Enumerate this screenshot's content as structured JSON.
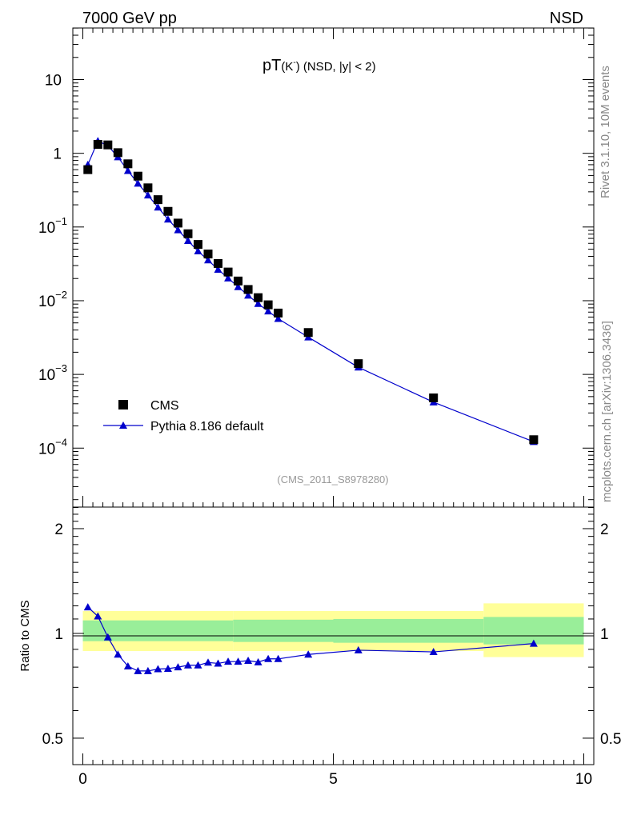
{
  "header": {
    "left": "7000 GeV pp",
    "right": "NSD"
  },
  "side_text": {
    "rivet": "Rivet 3.1.10,  10M events",
    "mcplots": "mcplots.cern.ch [arXiv:1306.3436]"
  },
  "colors": {
    "mc": "#0000cc",
    "data": "#000000",
    "band_outer": "#ffff99",
    "band_inner": "#99ee99",
    "watermark": "#999999"
  },
  "chart_data": {
    "type": "scatter",
    "title_main": "pT",
    "title_particle": "(K",
    "title_superscript": "-",
    "title_particle_close": ")",
    "title_suffix": " (NSD, |y| < 2)",
    "watermark": "(CMS_2011_S8978280)",
    "xlim": [
      -0.2,
      10.2
    ],
    "ylim_log10": [
      -4.8,
      1.7
    ],
    "x_ticks": [
      0,
      5,
      10
    ],
    "x_tick_labels": [
      "0",
      "5",
      "10"
    ],
    "y_ticks": [
      {
        "exp": 1,
        "label": "10",
        "sup": ""
      },
      {
        "exp": 0,
        "label": "1",
        "sup": ""
      },
      {
        "exp": -1,
        "label": "10",
        "sup": "−1"
      },
      {
        "exp": -2,
        "label": "10",
        "sup": "−2"
      },
      {
        "exp": -3,
        "label": "10",
        "sup": "−3"
      },
      {
        "exp": -4,
        "label": "10",
        "sup": "−4"
      }
    ],
    "legend": [
      {
        "name": "CMS",
        "marker": "square"
      },
      {
        "name": "Pythia 8.186 default",
        "marker": "triangle"
      }
    ],
    "x": [
      0.1,
      0.3,
      0.5,
      0.7,
      0.9,
      1.1,
      1.3,
      1.5,
      1.7,
      1.9,
      2.1,
      2.3,
      2.5,
      2.7,
      2.9,
      3.1,
      3.3,
      3.5,
      3.7,
      3.9,
      4.5,
      5.5,
      7.0,
      9.0
    ],
    "series": [
      {
        "name": "CMS",
        "values": [
          0.6,
          1.32,
          1.3,
          1.02,
          0.72,
          0.49,
          0.34,
          0.235,
          0.163,
          0.113,
          0.081,
          0.058,
          0.043,
          0.032,
          0.0245,
          0.0185,
          0.0142,
          0.011,
          0.0088,
          0.0068,
          0.0037,
          0.0014,
          0.00048,
          0.00013
        ]
      },
      {
        "name": "Pythia 8.186 default",
        "values": [
          0.7,
          1.47,
          1.27,
          0.89,
          0.58,
          0.39,
          0.27,
          0.185,
          0.127,
          0.091,
          0.065,
          0.047,
          0.0355,
          0.0265,
          0.0202,
          0.0154,
          0.0118,
          0.0091,
          0.0072,
          0.0057,
          0.0032,
          0.00125,
          0.00042,
          0.000122
        ]
      }
    ],
    "ratio": {
      "ylabel": "Ratio to CMS",
      "ylim_log10": [
        -0.377,
        0.363
      ],
      "y_ticks": [
        {
          "value": 0.5,
          "label": "0.5"
        },
        {
          "value": 1,
          "label": "1"
        },
        {
          "value": 2,
          "label": "2"
        }
      ],
      "x": [
        0.1,
        0.3,
        0.5,
        0.7,
        0.9,
        1.1,
        1.3,
        1.5,
        1.7,
        1.9,
        2.1,
        2.3,
        2.5,
        2.7,
        2.9,
        3.1,
        3.3,
        3.5,
        3.7,
        3.9,
        4.5,
        5.5,
        7.0,
        9.0
      ],
      "values": [
        1.19,
        1.12,
        0.975,
        0.87,
        0.805,
        0.78,
        0.78,
        0.79,
        0.792,
        0.8,
        0.81,
        0.81,
        0.825,
        0.82,
        0.83,
        0.83,
        0.835,
        0.827,
        0.845,
        0.845,
        0.87,
        0.895,
        0.885,
        0.935
      ],
      "bands": [
        {
          "x0": 0,
          "x1": 3,
          "outer": [
            0.89,
            1.16
          ],
          "inner": [
            0.95,
            1.09
          ]
        },
        {
          "x0": 3,
          "x1": 5,
          "outer": [
            0.89,
            1.16
          ],
          "inner": [
            0.945,
            1.095
          ]
        },
        {
          "x0": 5,
          "x1": 8,
          "outer": [
            0.89,
            1.16
          ],
          "inner": [
            0.94,
            1.1
          ]
        },
        {
          "x0": 8,
          "x1": 10,
          "outer": [
            0.855,
            1.22
          ],
          "inner": [
            0.93,
            1.115
          ]
        }
      ]
    }
  }
}
